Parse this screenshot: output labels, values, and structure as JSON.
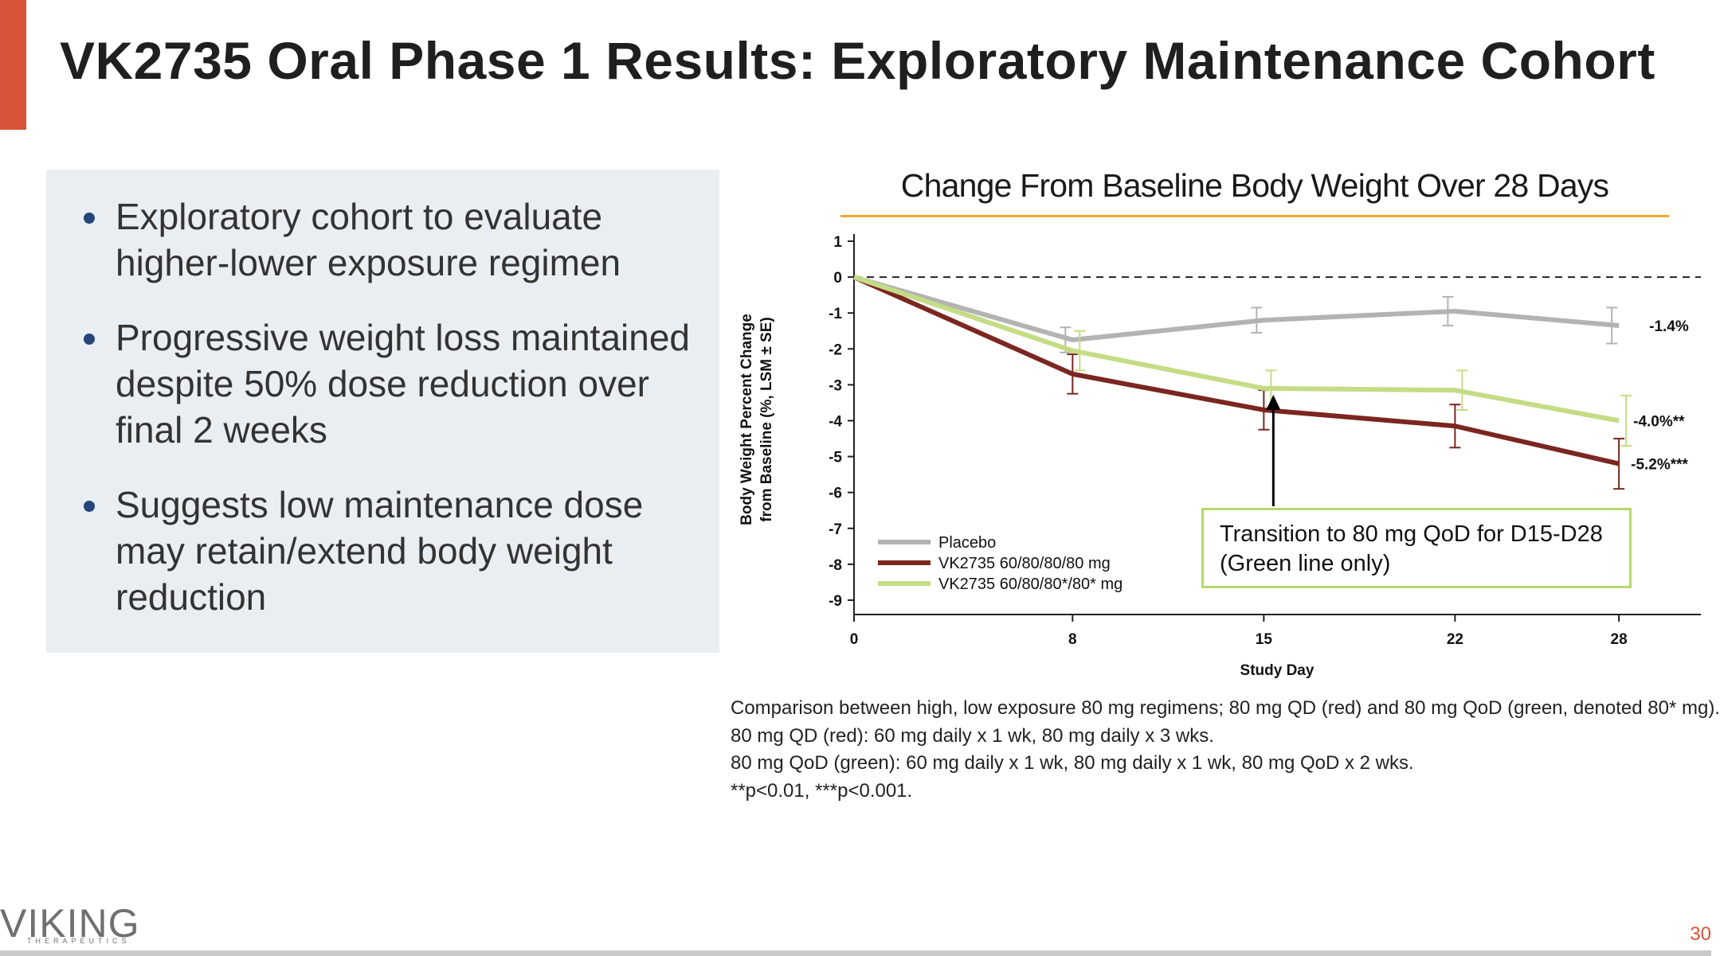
{
  "slide": {
    "title": "VK2735 Oral Phase 1 Results: Exploratory Maintenance Cohort",
    "page_number": "30",
    "accent_color": "#d9523a"
  },
  "bullets": [
    "Exploratory cohort to evaluate higher-lower exposure regimen",
    "Progressive weight loss maintained despite 50% dose reduction over final 2 weeks",
    "Suggests low maintenance dose may retain/extend body weight reduction"
  ],
  "callout": {
    "line1": "Transition to 80 mg QoD for D15-D28",
    "line2": "(Green line only)"
  },
  "notes": [
    "Comparison between high, low exposure 80 mg regimens; 80 mg QD (red) and 80 mg QoD (green, denoted 80* mg).",
    "80 mg QD (red): 60 mg daily x 1 wk, 80 mg daily x 3 wks.",
    "80 mg QoD (green): 60 mg daily x 1 wk, 80 mg daily x 1 wk, 80 mg QoD x 2 wks.",
    "**p<0.01, ***p<0.001."
  ],
  "logo": {
    "name": "VIKING",
    "tagline": "THERAPEUTICS"
  },
  "chart_data": {
    "type": "line",
    "title": "Change From Baseline Body Weight Over 28 Days",
    "xlabel": "Study Day",
    "ylabel_line1": "Body Weight Percent Change",
    "ylabel_line2": "from Baseline (%, LSM ± SE)",
    "x_ticks": [
      0,
      8,
      15,
      22,
      28
    ],
    "y_ticks": [
      1,
      0,
      -1,
      -2,
      -3,
      -4,
      -5,
      -6,
      -7,
      -8,
      -9
    ],
    "xlim": [
      0,
      31
    ],
    "ylim": [
      -9.4,
      1.2
    ],
    "reference_line": 0,
    "legend_position": "bottom-left",
    "series": [
      {
        "name": "Placebo",
        "color": "#b3b3b3",
        "x": [
          0,
          8,
          15,
          22,
          28
        ],
        "values": [
          0,
          -1.75,
          -1.2,
          -0.95,
          -1.35
        ],
        "errors": [
          0,
          0.35,
          0.35,
          0.4,
          0.5
        ],
        "end_label": "-1.4%"
      },
      {
        "name": "VK2735 60/80/80/80 mg",
        "color": "#7b2620",
        "x": [
          0,
          8,
          15,
          22,
          28
        ],
        "values": [
          0,
          -2.7,
          -3.7,
          -4.15,
          -5.2
        ],
        "errors": [
          0,
          0.55,
          0.55,
          0.6,
          0.7
        ],
        "end_label": "-5.2%***"
      },
      {
        "name": "VK2735 60/80/80*/80* mg",
        "color": "#c4dc84",
        "x": [
          0,
          8,
          15,
          22,
          28
        ],
        "values": [
          0,
          -2.05,
          -3.1,
          -3.15,
          -4.0
        ],
        "errors": [
          0,
          0.55,
          0.5,
          0.55,
          0.7
        ],
        "end_label": "-4.0%**"
      }
    ]
  }
}
